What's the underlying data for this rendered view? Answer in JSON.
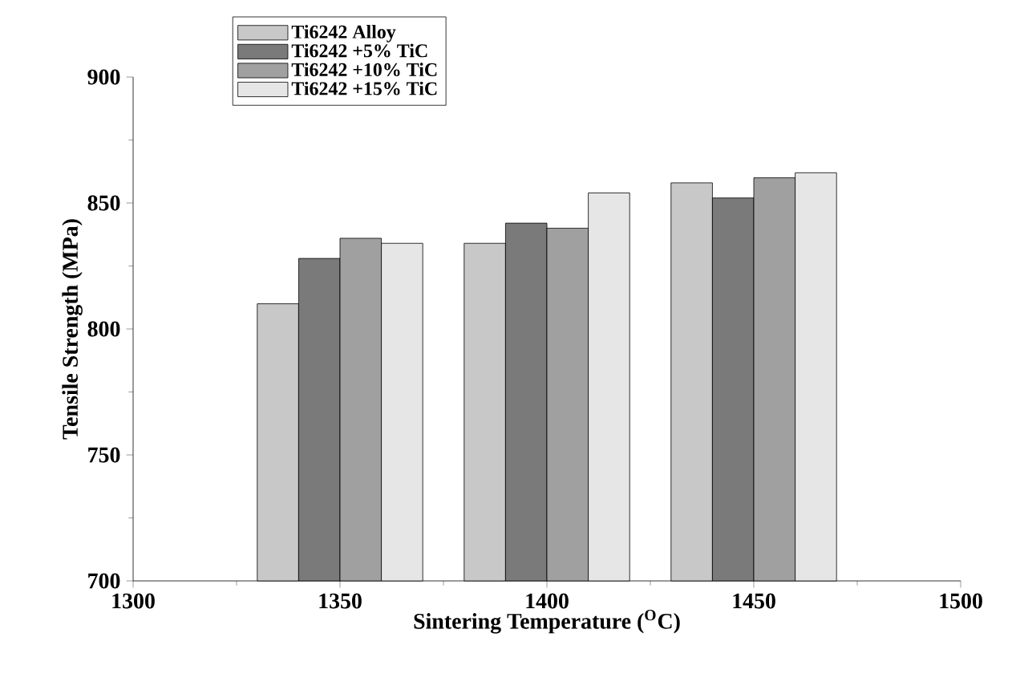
{
  "chart_data": {
    "type": "bar",
    "xlabel": "Sintering Temperature ($^{O}$C)",
    "ylabel": "Tensile Strength (MPa)",
    "x": [
      1350,
      1400,
      1450
    ],
    "series": [
      {
        "name": "Ti6242 Alloy",
        "color": "#c8c8c8",
        "values": [
          810,
          834,
          858
        ]
      },
      {
        "name": "Ti6242 +5% TiC",
        "color": "#7a7a7a",
        "values": [
          828,
          842,
          852
        ]
      },
      {
        "name": "Ti6242 +10% TiC",
        "color": "#a0a0a0",
        "values": [
          836,
          840,
          860
        ]
      },
      {
        "name": "Ti6242 +15% TiC",
        "color": "#e6e6e6",
        "values": [
          834,
          854,
          862
        ]
      }
    ],
    "xlim": [
      1300,
      1500
    ],
    "xticks": [
      1300,
      1350,
      1400,
      1450,
      1500
    ],
    "ylim": [
      700,
      900
    ],
    "yticks": [
      700,
      750,
      800,
      850,
      900
    ],
    "grid": false,
    "legend": "top left"
  }
}
